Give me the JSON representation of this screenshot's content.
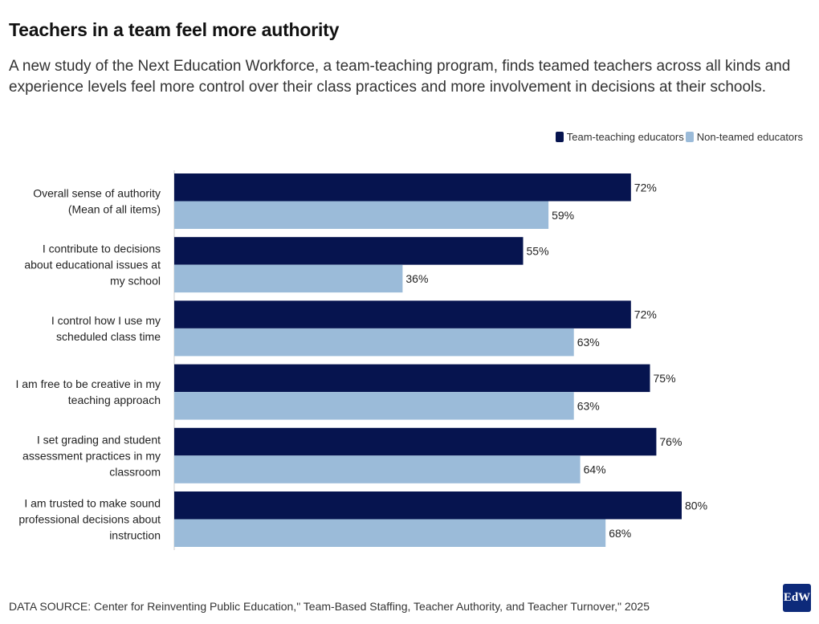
{
  "title": "Teachers in a team feel more authority",
  "subtitle": "A new study of the Next Education Workforce, a team-teaching program, finds teamed teachers across all kinds and experience levels feel more control over their class practices and more involvement in decisions at their schools.",
  "legend": {
    "items": [
      {
        "label": "Team-teaching educators",
        "color": "#06144f"
      },
      {
        "label": "Non-teamed educators",
        "color": "#9bbbd9"
      }
    ]
  },
  "source": "DATA SOURCE: Center for Reinventing Public Education,\" Team-Based Staffing, Teacher Authority, and Teacher Turnover,\" 2025",
  "logo": {
    "text": "EdW"
  },
  "chart_data": {
    "type": "bar",
    "orientation": "horizontal",
    "categories": [
      [
        "Overall sense of authority",
        "(Mean of all items)"
      ],
      [
        "I contribute to decisions",
        "about educational issues at",
        "my school"
      ],
      [
        "I control how I use my",
        "scheduled class time"
      ],
      [
        "I am free to be creative in my",
        "teaching approach"
      ],
      [
        "I set grading and student",
        "assessment practices in my",
        "classroom"
      ],
      [
        "I am trusted to make sound",
        "professional decisions about",
        "instruction"
      ]
    ],
    "series": [
      {
        "name": "Team-teaching educators",
        "color": "#06144f",
        "values": [
          72,
          55,
          72,
          75,
          76,
          80
        ]
      },
      {
        "name": "Non-teamed educators",
        "color": "#9bbbd9",
        "values": [
          59,
          36,
          63,
          63,
          64,
          68
        ]
      }
    ],
    "value_suffix": "%",
    "xlim": [
      0,
      100
    ],
    "grid": false,
    "legend_position": "top-right"
  }
}
